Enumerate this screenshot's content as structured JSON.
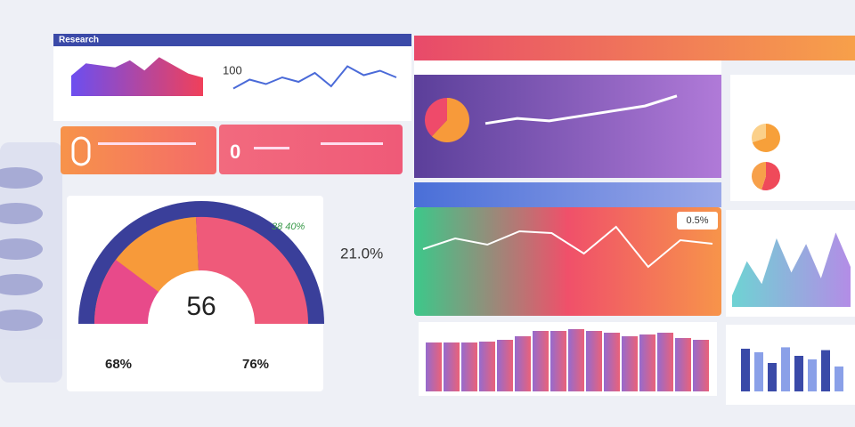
{
  "header": {
    "title": "Research"
  },
  "top_area": {
    "values": [
      20,
      32,
      30,
      28,
      35,
      25,
      38,
      30,
      22,
      18
    ]
  },
  "top_line": {
    "label": "100",
    "values": [
      10,
      18,
      14,
      20,
      16,
      24,
      12,
      30,
      22,
      26,
      20
    ]
  },
  "kpi_cards": [
    {
      "value": "0"
    },
    {
      "value": "0"
    }
  ],
  "gauge": {
    "value": "56",
    "left_pct": "68%",
    "right_pct": "76%",
    "side_label": "38 40%"
  },
  "side_stat": "21.0%",
  "trend_panel": {
    "pie": [
      62,
      38
    ],
    "line": [
      8,
      12,
      10,
      14,
      18,
      22,
      30
    ]
  },
  "wave_panel": {
    "label": "0.5%",
    "values": [
      60,
      72,
      65,
      80,
      78,
      55,
      85,
      40,
      70,
      66
    ]
  },
  "bar_panel": {
    "values": [
      55,
      55,
      55,
      56,
      58,
      62,
      68,
      68,
      70,
      68,
      66,
      62,
      64,
      66,
      60,
      58
    ]
  },
  "side_pies": [
    [
      70,
      30
    ],
    [
      55,
      45
    ]
  ],
  "spike_panel": {
    "values": [
      10,
      40,
      20,
      60,
      30,
      55,
      25,
      65,
      35
    ]
  },
  "small_bars": {
    "values": [
      60,
      55,
      40,
      62,
      50,
      45,
      58,
      35
    ]
  }
}
